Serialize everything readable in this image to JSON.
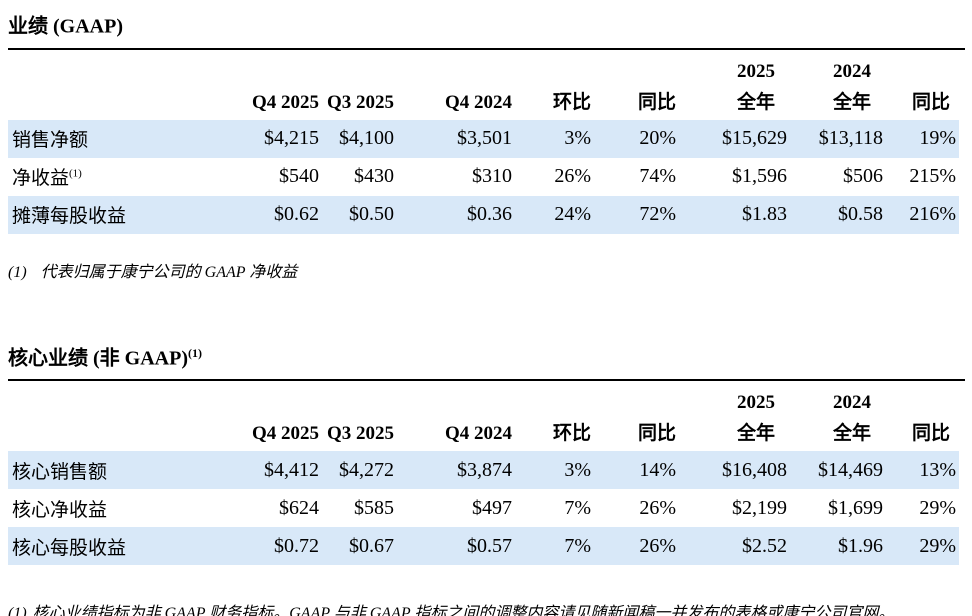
{
  "colors": {
    "band": "#d8e8f8",
    "rule": "#000000",
    "text": "#000000",
    "background": "#ffffff"
  },
  "sections": [
    {
      "title": "业绩 (GAAP)",
      "title_sup": "",
      "header_top": [
        "",
        "",
        "",
        "",
        "",
        "",
        "2025",
        "2024",
        ""
      ],
      "header_bottom": [
        "",
        "Q4 2025",
        "Q3 2025",
        "Q4 2024",
        "环比",
        "同比",
        "全年",
        "全年",
        "同比"
      ],
      "rows": [
        {
          "label": "销售净额",
          "sup": "",
          "shaded": true,
          "values": [
            "$4,215",
            "$4,100",
            "$3,501",
            "3%",
            "20%",
            "$15,629",
            "$13,118",
            "19%"
          ]
        },
        {
          "label": "净收益",
          "sup": "(1)",
          "shaded": false,
          "values": [
            "$540",
            "$430",
            "$310",
            "26%",
            "74%",
            "$1,596",
            "$506",
            "215%"
          ]
        },
        {
          "label": "摊薄每股收益",
          "sup": "",
          "shaded": true,
          "values": [
            "$0.62",
            "$0.50",
            "$0.36",
            "24%",
            "72%",
            "$1.83",
            "$0.58",
            "216%"
          ]
        }
      ],
      "footnote_marker": "(1)",
      "footnote_text": "代表归属于康宁公司的 GAAP 净收益"
    },
    {
      "title": "核心业绩 (非 GAAP)",
      "title_sup": "(1)",
      "header_top": [
        "",
        "",
        "",
        "",
        "",
        "",
        "2025",
        "2024",
        ""
      ],
      "header_bottom": [
        "",
        "Q4 2025",
        "Q3 2025",
        "Q4 2024",
        "环比",
        "同比",
        "全年",
        "全年",
        "同比"
      ],
      "rows": [
        {
          "label": "核心销售额",
          "sup": "",
          "shaded": true,
          "values": [
            "$4,412",
            "$4,272",
            "$3,874",
            "3%",
            "14%",
            "$16,408",
            "$14,469",
            "13%"
          ]
        },
        {
          "label": "核心净收益",
          "sup": "",
          "shaded": false,
          "values": [
            "$624",
            "$585",
            "$497",
            "7%",
            "26%",
            "$2,199",
            "$1,699",
            "29%"
          ]
        },
        {
          "label": "核心每股收益",
          "sup": "",
          "shaded": true,
          "values": [
            "$0.72",
            "$0.67",
            "$0.57",
            "7%",
            "26%",
            "$2.52",
            "$1.96",
            "29%"
          ]
        }
      ],
      "footnote_marker": "(1)",
      "footnote_text": "核心业绩指标为非 GAAP 财务指标。GAAP 与非 GAAP 指标之间的调整内容请见随新闻稿一并发布的表格或康宁公司官网。"
    }
  ]
}
